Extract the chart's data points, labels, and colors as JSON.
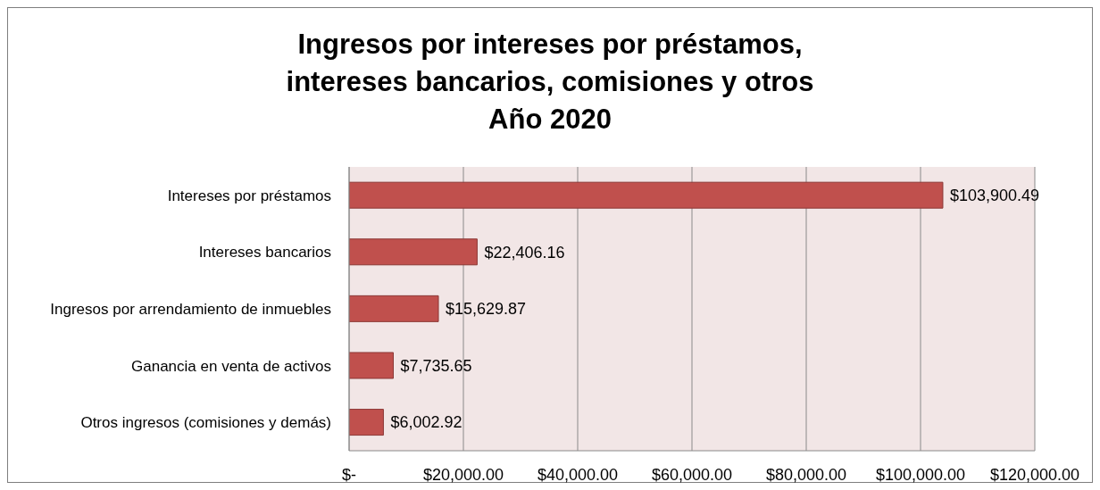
{
  "chart_data": {
    "type": "bar",
    "orientation": "horizontal",
    "title": "Ingresos por intereses por préstamos,\nintereses bancarios, comisiones y otros\nAño 2020",
    "categories": [
      "Intereses por préstamos",
      "Intereses bancarios",
      "Ingresos por arrendamiento de inmuebles",
      "Ganancia en venta de activos",
      "Otros ingresos (comisiones y demás)"
    ],
    "values": [
      103900.49,
      22406.16,
      15629.87,
      7735.65,
      6002.92
    ],
    "value_labels": [
      "$103,900.49",
      "$22,406.16",
      "$15,629.87",
      "$7,735.65",
      "$6,002.92"
    ],
    "color": "#c0504d",
    "xlim": [
      0,
      120000
    ],
    "xticks": [
      {
        "value": 0,
        "label": "$-"
      },
      {
        "value": 20000,
        "label": "$20,000.00"
      },
      {
        "value": 40000,
        "label": "$40,000.00"
      },
      {
        "value": 60000,
        "label": "$60,000.00"
      },
      {
        "value": 80000,
        "label": "$80,000.00"
      },
      {
        "value": 100000,
        "label": "$100,000.00"
      },
      {
        "value": 120000,
        "label": "$120,000.00"
      }
    ],
    "grid": "x",
    "legend": false
  }
}
